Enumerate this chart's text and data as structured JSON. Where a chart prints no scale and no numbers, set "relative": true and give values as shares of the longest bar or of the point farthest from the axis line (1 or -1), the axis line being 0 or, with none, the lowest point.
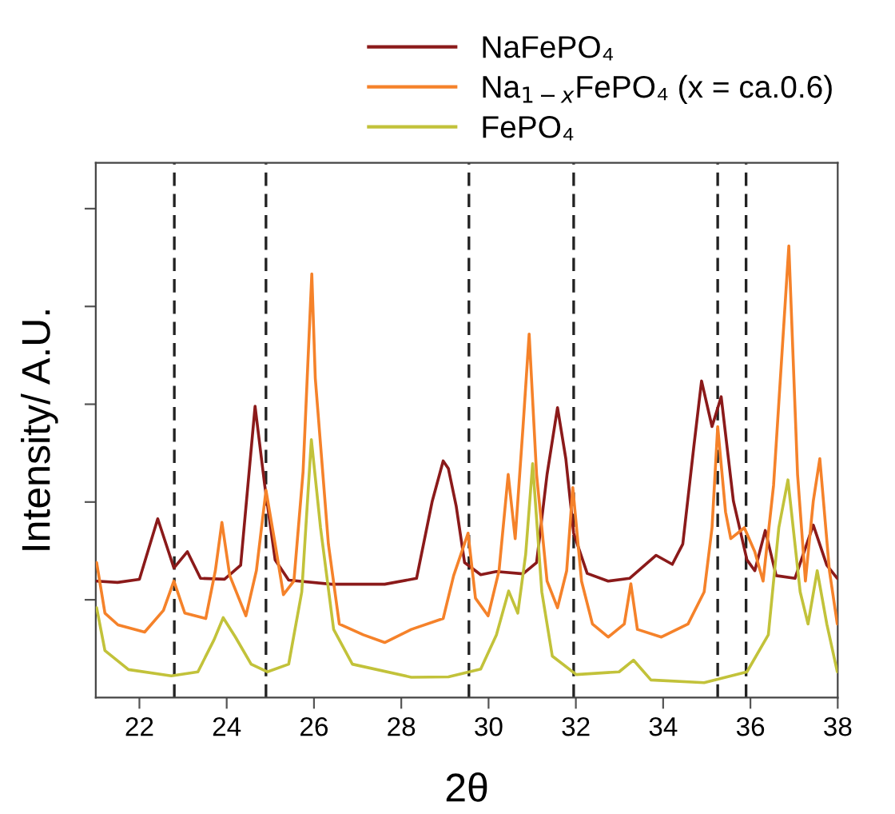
{
  "chart_data": {
    "type": "line",
    "xlabel": "2θ",
    "ylabel": "Intensity/ A.U.",
    "relative": true,
    "tick_labels": "x",
    "xlim": [
      21,
      38
    ],
    "xticks": [
      22,
      24,
      26,
      28,
      30,
      32,
      34,
      36,
      38
    ],
    "grid": false,
    "legend": "top right",
    "marker": "none",
    "line_style": "solid",
    "series": [
      {
        "name": "NaFePO₄",
        "color": "#8b1a1a",
        "x": [
          21.02,
          21.5,
          22.0,
          22.42,
          22.79,
          23.1,
          23.4,
          23.95,
          24.32,
          24.65,
          24.87,
          25.11,
          25.42,
          26.4,
          27.62,
          28.35,
          28.71,
          28.96,
          29.08,
          29.26,
          29.45,
          29.82,
          30.18,
          30.79,
          31.1,
          31.34,
          31.58,
          31.77,
          31.95,
          32.26,
          32.74,
          33.23,
          33.84,
          34.21,
          34.45,
          34.7,
          34.88,
          35.12,
          35.33,
          35.61,
          35.92,
          36.1,
          36.34,
          36.59,
          37.02,
          37.44,
          37.75,
          37.99
        ],
        "values": [
          0.258,
          0.255,
          0.262,
          0.396,
          0.287,
          0.323,
          0.264,
          0.262,
          0.293,
          0.645,
          0.471,
          0.305,
          0.26,
          0.251,
          0.251,
          0.264,
          0.435,
          0.524,
          0.507,
          0.423,
          0.299,
          0.272,
          0.279,
          0.274,
          0.299,
          0.494,
          0.642,
          0.529,
          0.364,
          0.275,
          0.258,
          0.264,
          0.315,
          0.295,
          0.34,
          0.553,
          0.701,
          0.6,
          0.666,
          0.435,
          0.305,
          0.281,
          0.37,
          0.27,
          0.264,
          0.382,
          0.293,
          0.264
        ]
      },
      {
        "name": "Na$_{1−x}$FePO₄ (x = ca.0.6)",
        "color": "#f5822a",
        "x": [
          21.02,
          21.21,
          21.51,
          22.12,
          22.55,
          22.79,
          23.04,
          23.52,
          23.74,
          23.89,
          24.07,
          24.44,
          24.68,
          24.9,
          25.11,
          25.3,
          25.54,
          25.75,
          25.95,
          26.03,
          26.33,
          26.58,
          27.13,
          27.62,
          28.23,
          28.96,
          29.2,
          29.53,
          29.7,
          29.99,
          30.24,
          30.45,
          30.61,
          30.79,
          30.93,
          31.1,
          31.34,
          31.58,
          31.79,
          31.93,
          32.13,
          32.38,
          32.74,
          33.11,
          33.26,
          33.41,
          33.96,
          34.57,
          34.94,
          35.12,
          35.25,
          35.43,
          35.55,
          35.86,
          36.1,
          36.29,
          36.53,
          36.88,
          37.08,
          37.26,
          37.44,
          37.59,
          37.81,
          37.99
        ],
        "values": [
          0.299,
          0.187,
          0.161,
          0.145,
          0.193,
          0.258,
          0.187,
          0.175,
          0.281,
          0.388,
          0.27,
          0.181,
          0.281,
          0.459,
          0.34,
          0.228,
          0.258,
          0.5,
          0.938,
          0.707,
          0.34,
          0.163,
          0.139,
          0.122,
          0.151,
          0.175,
          0.27,
          0.364,
          0.22,
          0.181,
          0.281,
          0.494,
          0.352,
          0.6,
          0.805,
          0.494,
          0.258,
          0.199,
          0.281,
          0.465,
          0.258,
          0.163,
          0.134,
          0.163,
          0.252,
          0.151,
          0.134,
          0.163,
          0.234,
          0.376,
          0.6,
          0.411,
          0.352,
          0.376,
          0.323,
          0.258,
          0.47,
          1.0,
          0.494,
          0.258,
          0.435,
          0.529,
          0.281,
          0.163
        ]
      },
      {
        "name": "FePO₄",
        "color": "#c2c23a",
        "x": [
          21.02,
          21.21,
          21.75,
          22.73,
          23.34,
          23.71,
          23.92,
          24.2,
          24.56,
          24.93,
          25.42,
          25.72,
          25.94,
          26.15,
          26.45,
          26.88,
          28.23,
          29.08,
          29.82,
          30.18,
          30.46,
          30.67,
          30.85,
          31.01,
          31.22,
          31.46,
          32.01,
          32.99,
          33.32,
          33.72,
          34.94,
          35.92,
          36.41,
          36.65,
          36.86,
          37.14,
          37.32,
          37.53,
          37.75,
          37.99
        ],
        "values": [
          0.199,
          0.104,
          0.062,
          0.048,
          0.057,
          0.128,
          0.177,
          0.134,
          0.074,
          0.057,
          0.074,
          0.234,
          0.571,
          0.376,
          0.151,
          0.074,
          0.045,
          0.046,
          0.063,
          0.139,
          0.236,
          0.187,
          0.317,
          0.518,
          0.234,
          0.092,
          0.051,
          0.057,
          0.083,
          0.039,
          0.033,
          0.057,
          0.139,
          0.376,
          0.482,
          0.234,
          0.163,
          0.281,
          0.163,
          0.057
        ]
      }
    ],
    "ref_lines": [
      {
        "axis": "x",
        "value": 22.8,
        "color": "#222222",
        "line_style": "dashed"
      },
      {
        "axis": "x",
        "value": 24.9,
        "color": "#222222",
        "line_style": "dashed"
      },
      {
        "axis": "x",
        "value": 29.55,
        "color": "#222222",
        "line_style": "dashed"
      },
      {
        "axis": "x",
        "value": 31.95,
        "color": "#222222",
        "line_style": "dashed"
      },
      {
        "axis": "x",
        "value": 35.25,
        "color": "#222222",
        "line_style": "dashed"
      },
      {
        "axis": "x",
        "value": 35.9,
        "color": "#222222",
        "line_style": "dashed"
      }
    ]
  }
}
